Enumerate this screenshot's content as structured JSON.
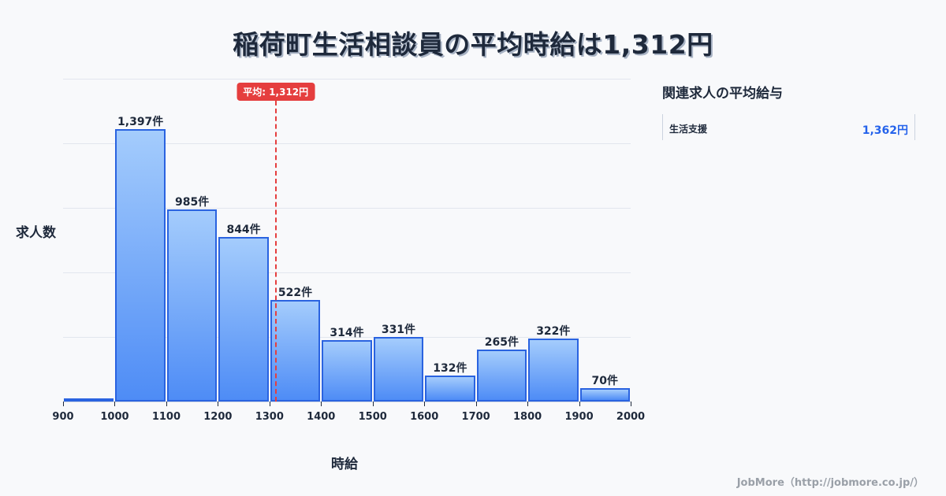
{
  "title": "稲荷町生活相談員の平均時給は1,312円",
  "chart_data": {
    "type": "bar",
    "title": "稲荷町生活相談員の平均時給は1,312円",
    "xlabel": "時給",
    "ylabel": "求人数",
    "categories": [
      "900-1000",
      "1000-1100",
      "1100-1200",
      "1200-1300",
      "1300-1400",
      "1400-1500",
      "1500-1600",
      "1600-1700",
      "1700-1800",
      "1800-1900",
      "1900-2000"
    ],
    "x_ticks": [
      900,
      1000,
      1100,
      1200,
      1300,
      1400,
      1500,
      1600,
      1700,
      1800,
      1900,
      2000
    ],
    "values": [
      16,
      1397,
      985,
      844,
      522,
      314,
      331,
      132,
      265,
      322,
      70
    ],
    "value_labels": [
      "",
      "1,397件",
      "985件",
      "844件",
      "522件",
      "314件",
      "331件",
      "132件",
      "265件",
      "322件",
      "70件"
    ],
    "ylim": [
      0,
      1655
    ],
    "grid": true,
    "average": {
      "value": 1312,
      "label": "平均: 1,312円"
    }
  },
  "side_panel": {
    "title": "関連求人の平均給与",
    "rows": [
      {
        "label": "生活支援",
        "value": "1,362円"
      }
    ]
  },
  "footer": "JobMore（http://jobmore.co.jp/）",
  "colors": {
    "bar_top": "#a4ccfc",
    "bar_bottom": "#4e8cf6",
    "bar_border": "#2a63e0",
    "average": "#e53e3e",
    "value_accent": "#2563eb"
  }
}
